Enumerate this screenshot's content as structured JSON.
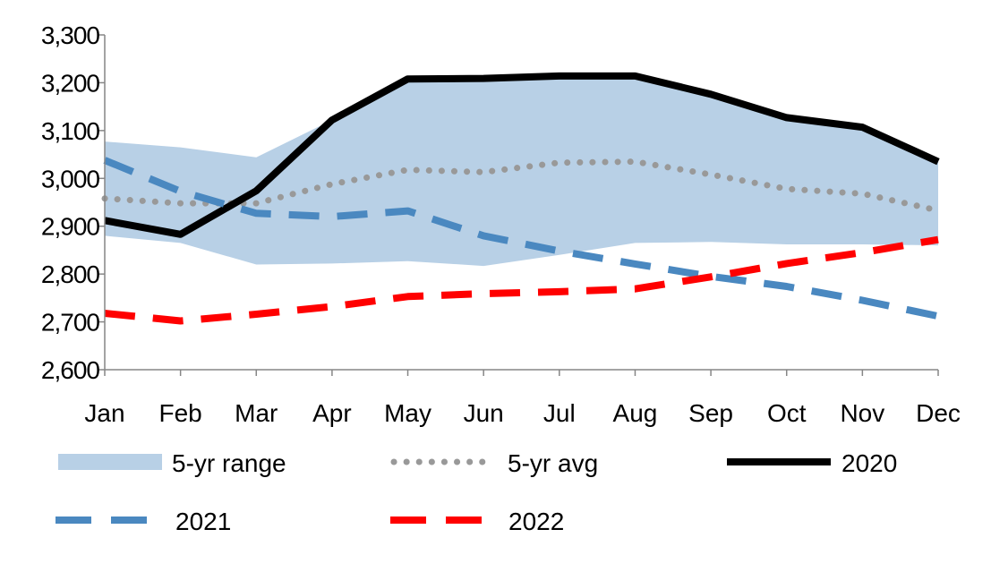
{
  "chart_data": {
    "type": "line",
    "title": "",
    "xlabel": "",
    "ylabel": "",
    "ylim": [
      2600,
      3300
    ],
    "yticks": [
      2600,
      2700,
      2800,
      2900,
      3000,
      3100,
      3200,
      3300
    ],
    "ytick_labels": [
      "2,600",
      "2,700",
      "2,800",
      "2,900",
      "3,000",
      "3,100",
      "3,200",
      "3,300"
    ],
    "categories": [
      "Jan",
      "Feb",
      "Mar",
      "Apr",
      "May",
      "Jun",
      "Jul",
      "Aug",
      "Sep",
      "Oct",
      "Nov",
      "Dec"
    ],
    "range": {
      "name": "5-yr range",
      "low": [
        2880,
        2865,
        2820,
        2822,
        2827,
        2817,
        2840,
        2865,
        2867,
        2862,
        2862,
        2860
      ],
      "high": [
        3077,
        3065,
        3044,
        3122,
        3208,
        3209,
        3214,
        3214,
        3172,
        3128,
        3108,
        3036
      ],
      "color": "#b8d0e6"
    },
    "series": [
      {
        "name": "5-yr avg",
        "style": "dotted",
        "color": "#999999",
        "values": [
          2958,
          2948,
          2948,
          2988,
          3018,
          3013,
          3033,
          3035,
          3008,
          2978,
          2968,
          2933
        ]
      },
      {
        "name": "2020",
        "style": "solid",
        "color": "#000000",
        "values": [
          2912,
          2883,
          2974,
          3122,
          3208,
          3209,
          3214,
          3214,
          3176,
          3127,
          3107,
          3035
        ]
      },
      {
        "name": "2021",
        "style": "dashed",
        "color": "#4a88c0",
        "values": [
          3038,
          2973,
          2927,
          2920,
          2932,
          2880,
          2848,
          2821,
          2795,
          2774,
          2745,
          2712
        ]
      },
      {
        "name": "2022",
        "style": "dashed",
        "color": "#ff0000",
        "values": [
          2718,
          2702,
          2716,
          2732,
          2753,
          2759,
          2763,
          2769,
          2794,
          2822,
          2845,
          2872
        ]
      }
    ],
    "legend": {
      "position": "bottom",
      "rows": [
        [
          "5-yr range",
          "5-yr avg",
          "2020"
        ],
        [
          "2021",
          "2022"
        ]
      ]
    }
  }
}
